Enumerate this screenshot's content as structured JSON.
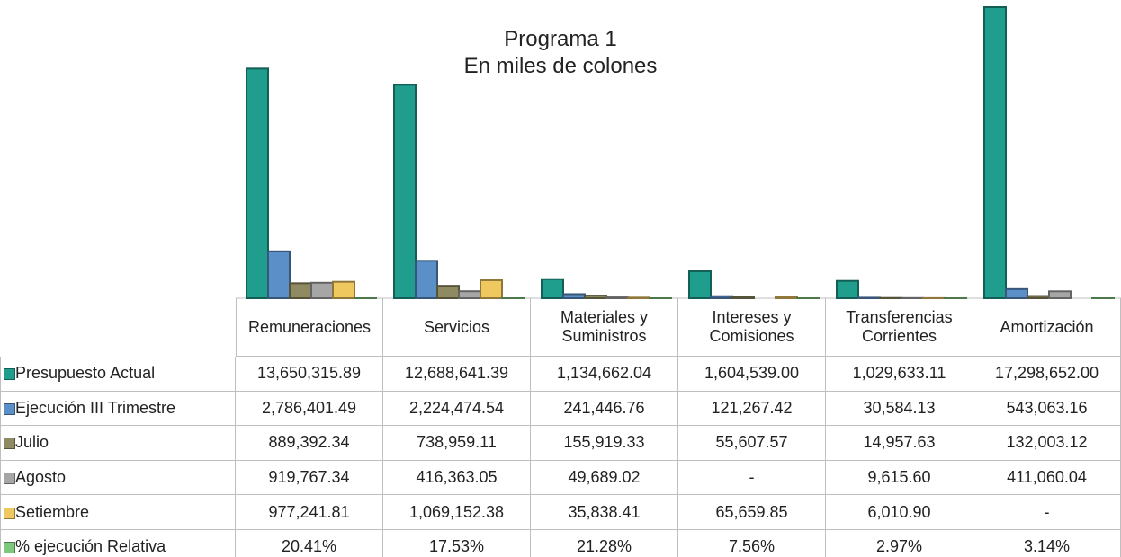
{
  "chart_data": {
    "type": "bar",
    "title": "Programa 1",
    "subtitle": "En miles de colones",
    "categories": [
      "Remuneraciones",
      "Servicios",
      "Materiales y Suministros",
      "Intereses y Comisiones",
      "Transferencias Corrientes",
      "Amortización"
    ],
    "series": [
      {
        "name": "Presupuesto Actual",
        "color": "#1f9e8e",
        "values": [
          13650315.89,
          12688641.39,
          1134662.04,
          1604539.0,
          1029633.11,
          17298652.0
        ],
        "value_labels": [
          "13,650,315.89",
          "12,688,641.39",
          "1,134,662.04",
          "1,604,539.00",
          "1,029,633.11",
          "17,298,652.00"
        ]
      },
      {
        "name": "Ejecución III Trimestre",
        "color": "#5b8fc8",
        "values": [
          2786401.49,
          2224474.54,
          241446.76,
          121267.42,
          30584.13,
          543063.16
        ],
        "value_labels": [
          "2,786,401.49",
          "2,224,474.54",
          "241,446.76",
          "121,267.42",
          "30,584.13",
          "543,063.16"
        ]
      },
      {
        "name": "Julio",
        "color": "#8f8a62",
        "values": [
          889392.34,
          738959.11,
          155919.33,
          55607.57,
          14957.63,
          132003.12
        ],
        "value_labels": [
          "889,392.34",
          "738,959.11",
          "155,919.33",
          "55,607.57",
          "14,957.63",
          "132,003.12"
        ]
      },
      {
        "name": "Agosto",
        "color": "#a6a6a6",
        "values": [
          919767.34,
          416363.05,
          49689.02,
          null,
          9615.6,
          411060.04
        ],
        "value_labels": [
          "919,767.34",
          "416,363.05",
          "49,689.02",
          "-",
          "9,615.60",
          "411,060.04"
        ]
      },
      {
        "name": "Setiembre",
        "color": "#f0c860",
        "values": [
          977241.81,
          1069152.38,
          35838.41,
          65659.85,
          6010.9,
          null
        ],
        "value_labels": [
          "977,241.81",
          "1,069,152.38",
          "35,838.41",
          "65,659.85",
          "6,010.90",
          "-"
        ]
      },
      {
        "name": "% ejecución Relativa",
        "color": "#7ec87e",
        "values": [
          20.41,
          17.53,
          21.28,
          7.56,
          2.97,
          3.14
        ],
        "value_labels": [
          "20.41%",
          "17.53%",
          "21.28%",
          "7.56%",
          "2.97%",
          "3.14%"
        ]
      }
    ]
  }
}
